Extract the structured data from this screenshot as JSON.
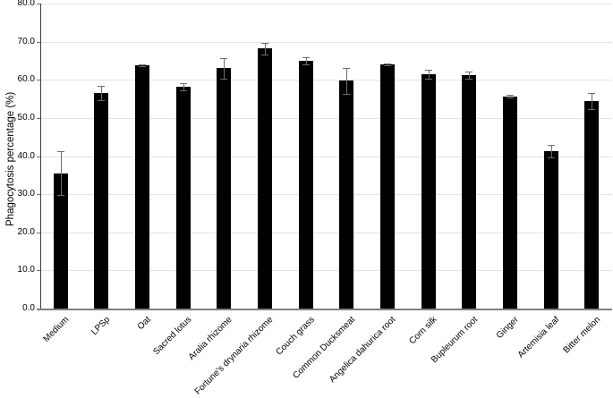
{
  "chart_data": {
    "type": "bar",
    "title": "",
    "xlabel": "",
    "ylabel": "Phagocytosis percentage (%)",
    "ylim": [
      0,
      80
    ],
    "ytick_step": 10,
    "ytick_labels": [
      "0.0",
      "10.0",
      "20.0",
      "30.0",
      "40.0",
      "50.0",
      "60.0",
      "70.0",
      "80.0"
    ],
    "grid": "horizontal",
    "legend": "none",
    "bar_color": "#000000",
    "error_bar_color": "#6e6e6e",
    "gridline_color": "#e3e3e3",
    "categories": [
      "Medium",
      "LPSp",
      "Oat",
      "Sacred lotus",
      "Aralia rhizome",
      "Fortune's drynaria rhizome",
      "Couch grass",
      "Common Ducksmeat",
      "Angelica dahurica root",
      "Corn silk",
      "Bupleurum root",
      "Ginger",
      "Artemisia leaf",
      "Bitter melon"
    ],
    "values": [
      35.5,
      56.5,
      63.8,
      58.2,
      63.1,
      68.2,
      65.0,
      59.8,
      64.0,
      61.5,
      61.2,
      55.7,
      41.3,
      54.4
    ],
    "errors": [
      5.8,
      1.9,
      0.3,
      0.9,
      2.7,
      1.5,
      1.0,
      3.4,
      0.3,
      1.1,
      1.0,
      0.4,
      1.6,
      2.1
    ]
  }
}
